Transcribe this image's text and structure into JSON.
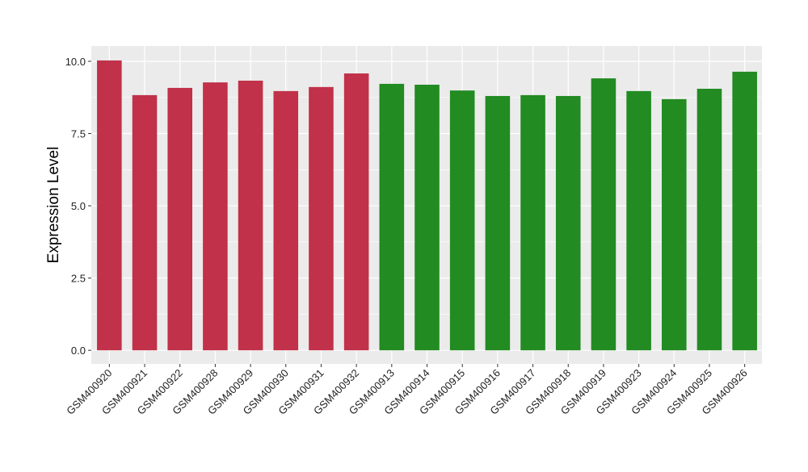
{
  "chart_data": {
    "type": "bar",
    "title": "",
    "xlabel": "",
    "ylabel": "Expression Level",
    "ylim": [
      -0.47,
      10.53
    ],
    "yticks": [
      0,
      2.5,
      5,
      7.5,
      10
    ],
    "ytick_labels": [
      "0.0",
      "2.5",
      "5.0",
      "7.5",
      "10.0"
    ],
    "grid": true,
    "legend": "none",
    "categories": [
      "GSM400920",
      "GSM400921",
      "GSM400922",
      "GSM400928",
      "GSM400929",
      "GSM400930",
      "GSM400931",
      "GSM400932",
      "GSM400913",
      "GSM400914",
      "GSM400915",
      "GSM400916",
      "GSM400917",
      "GSM400918",
      "GSM400919",
      "GSM400923",
      "GSM400924",
      "GSM400925",
      "GSM400926"
    ],
    "values": [
      10.03,
      8.83,
      9.08,
      9.27,
      9.33,
      8.97,
      9.11,
      9.58,
      9.22,
      9.19,
      8.99,
      8.8,
      8.83,
      8.8,
      9.41,
      8.97,
      8.69,
      9.05,
      9.64
    ],
    "groups": [
      "red",
      "red",
      "red",
      "red",
      "red",
      "red",
      "red",
      "red",
      "green",
      "green",
      "green",
      "green",
      "green",
      "green",
      "green",
      "green",
      "green",
      "green",
      "green"
    ],
    "colors": {
      "red": "#C13149",
      "green": "#228B22",
      "panel": "#EBEBEB",
      "grid": "#FFFFFF"
    }
  }
}
